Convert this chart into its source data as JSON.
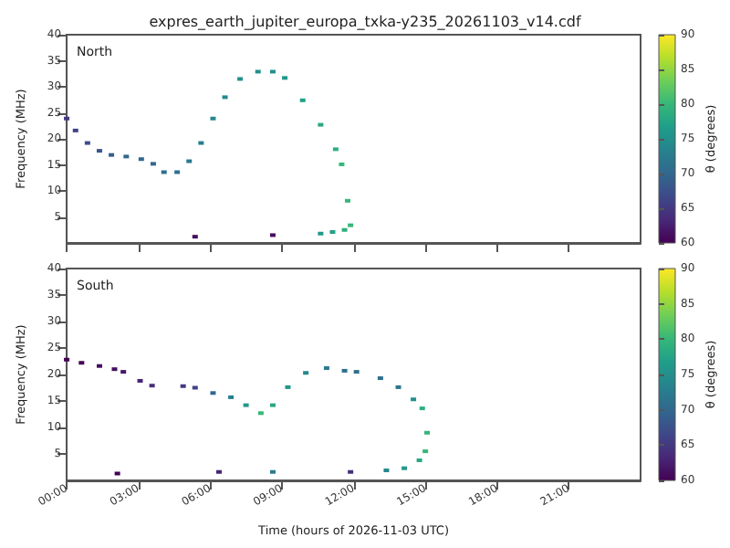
{
  "chart_data": [
    {
      "type": "scatter",
      "title": "expres_earth_jupiter_europa_txka-y235_20261103_v14.cdf",
      "annotations": [
        "North"
      ],
      "ylabel": "Frequency (MHz)",
      "clabel": "θ (degrees)",
      "marker": "square",
      "tick_labels": "y",
      "xticks": [
        0,
        3,
        6,
        9,
        12,
        15,
        18,
        21
      ],
      "x": [
        0,
        0.37,
        0.87,
        1.37,
        1.87,
        2.49,
        3.12,
        3.62,
        4.07,
        4.62,
        5.12,
        5.62,
        6.12,
        6.62,
        7.25,
        8.0,
        8.62,
        9.12,
        9.87,
        10.62,
        11.25,
        11.5,
        11.75,
        11.87,
        11.62,
        11.12,
        10.62,
        5.37,
        8.62
      ],
      "values": [
        23.9,
        21.6,
        19.2,
        17.7,
        16.9,
        16.6,
        16.1,
        15.2,
        13.6,
        13.6,
        15.7,
        19.2,
        23.9,
        28.0,
        31.5,
        32.9,
        32.9,
        31.7,
        27.4,
        22.7,
        18.0,
        15.1,
        8.1,
        3.4,
        2.5,
        2.1,
        1.8,
        1.2,
        1.5
      ],
      "cvalues": [
        65,
        66,
        67,
        68,
        69,
        70,
        70,
        70,
        71,
        71,
        72,
        73,
        74,
        74,
        75,
        75,
        75,
        76,
        77,
        78,
        79,
        80,
        80,
        80,
        79,
        77,
        76,
        61,
        61
      ],
      "xlim": [
        0,
        24
      ],
      "ylim": [
        0,
        40
      ],
      "yticks": [
        5,
        10,
        15,
        20,
        25,
        30,
        35,
        40
      ],
      "clim": [
        60,
        90
      ],
      "cticks": [
        60,
        65,
        70,
        75,
        80,
        85,
        90
      ]
    },
    {
      "type": "scatter",
      "annotations": [
        "South"
      ],
      "xlabel": "Time (hours of 2026-11-03 UTC)",
      "ylabel": "Frequency (MHz)",
      "clabel": "θ (degrees)",
      "marker": "square",
      "x": [
        0,
        0.62,
        1.37,
        2.0,
        2.37,
        3.07,
        3.57,
        4.87,
        5.37,
        6.12,
        6.87,
        7.5,
        8.12,
        8.62,
        9.25,
        10.0,
        10.87,
        11.62,
        12.12,
        13.12,
        13.87,
        14.5,
        14.87,
        15.07,
        15.0,
        14.75,
        14.12,
        13.37,
        2.12,
        6.37,
        8.62,
        11.87
      ],
      "values": [
        22.8,
        22.2,
        21.6,
        21.0,
        20.5,
        18.8,
        17.9,
        17.8,
        17.5,
        16.5,
        15.7,
        14.2,
        12.7,
        14.2,
        17.6,
        20.3,
        21.2,
        20.7,
        20.5,
        19.3,
        17.6,
        15.3,
        13.6,
        9.0,
        5.5,
        3.8,
        2.3,
        1.9,
        1.3,
        1.6,
        1.6,
        1.6
      ],
      "cvalues": [
        60,
        60,
        61,
        61,
        62,
        63,
        64,
        65,
        66,
        70,
        73,
        76,
        80,
        78,
        76,
        74,
        72,
        71,
        71,
        71,
        72,
        75,
        79,
        80,
        80,
        78,
        76,
        74,
        60,
        63,
        72,
        64
      ],
      "xlim": [
        0,
        24
      ],
      "xticks": [
        {
          "value": 0,
          "label": "00:00"
        },
        {
          "value": 3,
          "label": "03:00"
        },
        {
          "value": 6,
          "label": "06:00"
        },
        {
          "value": 9,
          "label": "09:00"
        },
        {
          "value": 12,
          "label": "12:00"
        },
        {
          "value": 15,
          "label": "15:00"
        },
        {
          "value": 18,
          "label": "18:00"
        },
        {
          "value": 21,
          "label": "21:00"
        }
      ],
      "ylim": [
        0,
        40
      ],
      "yticks": [
        5,
        10,
        15,
        20,
        25,
        30,
        35,
        40
      ],
      "clim": [
        60,
        90
      ],
      "cticks": [
        60,
        65,
        70,
        75,
        80,
        85,
        90
      ]
    }
  ]
}
